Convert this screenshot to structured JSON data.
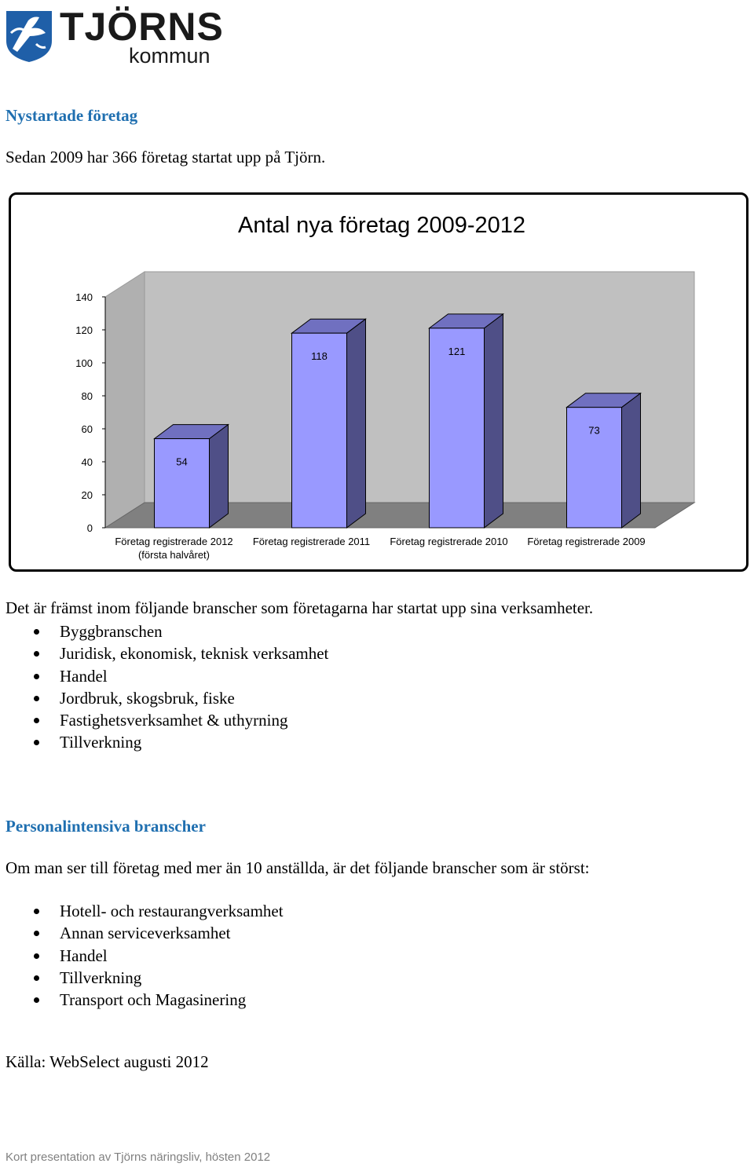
{
  "logo": {
    "word": "TJÖRNS",
    "sub": "kommun"
  },
  "section1": {
    "heading": "Nystartade företag",
    "intro": "Sedan 2009 har 366 företag startat upp på Tjörn."
  },
  "chart_data": {
    "type": "bar",
    "title": "Antal nya företag 2009-2012",
    "categories": [
      [
        "Företag registrerade 2012",
        "(första halvåret)"
      ],
      [
        "Företag registrerade 2011"
      ],
      [
        "Företag registrerade 2010"
      ],
      [
        "Företag registrerade 2009"
      ]
    ],
    "values": [
      54,
      118,
      121,
      73
    ],
    "value_labels": [
      "54",
      "118",
      "121",
      "73"
    ],
    "yticks": [
      "0",
      "20",
      "40",
      "60",
      "80",
      "100",
      "120",
      "140"
    ],
    "ylim": [
      0,
      140
    ],
    "style": "3d",
    "colors": {
      "front": "#9999ff",
      "side": "#4f4f87",
      "top": "#7070c0",
      "wall": "#c0c0c0",
      "floor": "#808080"
    }
  },
  "section1b": {
    "lead": "Det är främst inom följande branscher som företagarna har startat upp sina verksamheter.",
    "items": [
      "Byggbranschen",
      "Juridisk, ekonomisk, teknisk verksamhet",
      "Handel",
      "Jordbruk, skogsbruk, fiske",
      "Fastighetsverksamhet & uthyrning",
      "Tillverkning"
    ]
  },
  "section2": {
    "heading": "Personalintensiva branscher",
    "lead": "Om man ser till företag med mer än 10 anställda, är det följande branscher som är störst:",
    "items": [
      "Hotell- och restaurangverksamhet",
      "Annan serviceverksamhet",
      "Handel",
      "Tillverkning",
      "Transport och Magasinering"
    ]
  },
  "source": "Källa: WebSelect augusti 2012",
  "footer": "Kort presentation av Tjörns näringsliv, hösten 2012"
}
